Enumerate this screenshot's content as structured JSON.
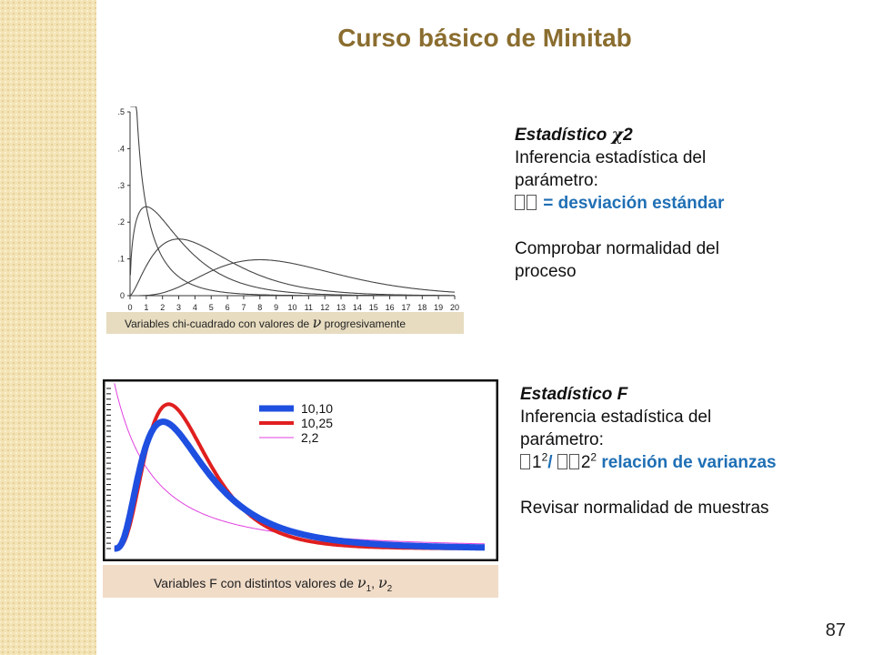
{
  "slide": {
    "title": "Curso básico de Minitab",
    "page_number": "87"
  },
  "chi_block": {
    "heading_prefix": "Estadístico ",
    "heading_symbol": "χ",
    "heading_suffix": "2",
    "line1": "Inferencia estadística del",
    "line2": "parámetro:",
    "param_text": "= desviación estándar",
    "line4": "Comprobar normalidad del",
    "line5": "proceso"
  },
  "f_block": {
    "heading": "Estadístico F",
    "line1": "Inferencia estadística del",
    "line2": "parámetro:",
    "ratio_a": "1",
    "ratio_exp_a": "2",
    "ratio_slash": "/",
    "ratio_b": "2",
    "ratio_exp_b": "2",
    "ratio_text": "relación de varianzas",
    "line4": "Revisar normalidad de muestras"
  },
  "chart_data": [
    {
      "type": "line",
      "caption": "Variables chi-cuadrado con valores de",
      "caption_symbol": "ν",
      "caption_suffix": "progresivamente",
      "xlim": [
        0,
        20
      ],
      "ylim": [
        0,
        0.5
      ],
      "x_ticks": [
        "0",
        "1",
        "2",
        "3",
        "4",
        "5",
        "6",
        "7",
        "8",
        "9",
        "10",
        "11",
        "12",
        "13",
        "14",
        "15",
        "16",
        "17",
        "18",
        "19",
        "20"
      ],
      "y_ticks": [
        "0",
        ".1",
        ".2",
        ".3",
        ".4",
        ".5"
      ],
      "series": [
        {
          "df": 1,
          "color": "#444444"
        },
        {
          "df": 3,
          "color": "#444444"
        },
        {
          "df": 5,
          "color": "#444444"
        },
        {
          "df": 10,
          "color": "#444444"
        }
      ]
    },
    {
      "type": "line",
      "caption": "Variables F con distintos valores de",
      "caption_symbol": "ν",
      "caption_sub1": "1",
      "caption_sep": ",",
      "caption_sub2": "2",
      "legend_position": "top-right",
      "series": [
        {
          "name": "10,10",
          "d1": 10,
          "d2": 10,
          "color": "#1f4fe0"
        },
        {
          "name": "10,25",
          "d1": 10,
          "d2": 25,
          "color": "#e01f1f"
        },
        {
          "name": "2,2",
          "d1": 2,
          "d2": 2,
          "color": "#e040e0"
        }
      ]
    }
  ]
}
